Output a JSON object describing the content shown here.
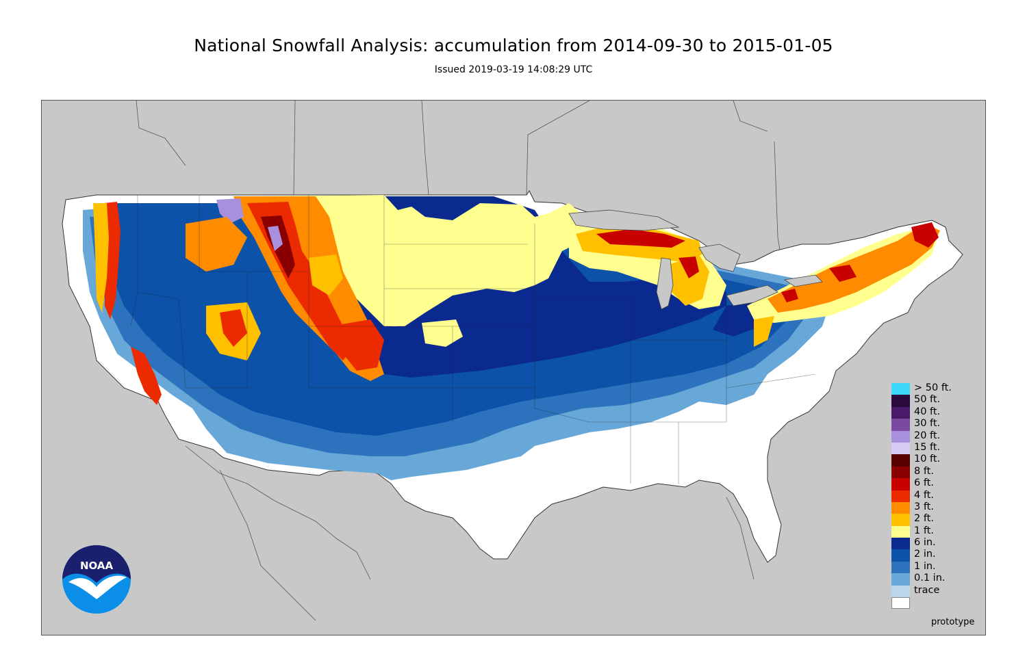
{
  "header": {
    "title": "National Snowfall Analysis: accumulation from 2014-09-30 to 2015-01-05",
    "subtitle": "Issued 2019-03-19 14:08:29 UTC"
  },
  "legend": [
    {
      "label": "> 50 ft.",
      "color": "#40d8f8"
    },
    {
      "label": "50 ft.",
      "color": "#2a0a3d"
    },
    {
      "label": "40 ft.",
      "color": "#4a1a6a"
    },
    {
      "label": "30 ft.",
      "color": "#7a4aa0"
    },
    {
      "label": "20 ft.",
      "color": "#a890dc"
    },
    {
      "label": "15 ft.",
      "color": "#d8ccf4"
    },
    {
      "label": "10 ft.",
      "color": "#5a0000"
    },
    {
      "label": "8 ft.",
      "color": "#8a0000"
    },
    {
      "label": "6 ft.",
      "color": "#c80000"
    },
    {
      "label": "4 ft.",
      "color": "#ec2a00"
    },
    {
      "label": "3 ft.",
      "color": "#ff8c00"
    },
    {
      "label": "2 ft.",
      "color": "#ffc000"
    },
    {
      "label": "1 ft.",
      "color": "#ffff90"
    },
    {
      "label": "6 in.",
      "color": "#0a2a90"
    },
    {
      "label": "2 in.",
      "color": "#0c52a8"
    },
    {
      "label": "1 in.",
      "color": "#2d72bc"
    },
    {
      "label": "0.1 in.",
      "color": "#68a8d8"
    },
    {
      "label": "trace",
      "color": "#bcd6ea"
    },
    {
      "label": "",
      "color": "#ffffff"
    }
  ],
  "logo": {
    "text": "NOAA"
  },
  "footer": {
    "note": "prototype"
  }
}
